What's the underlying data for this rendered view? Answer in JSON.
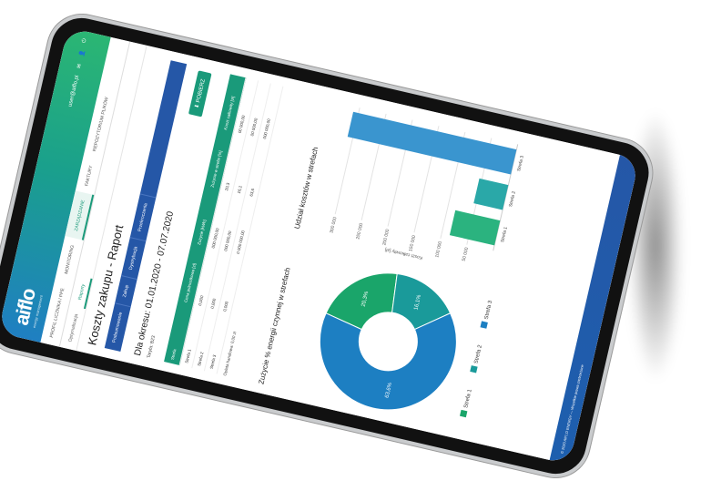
{
  "header": {
    "logo": "aiflo",
    "logo_sub": "energy management",
    "user": "user@aiflo.pl",
    "icons": [
      "mail-icon",
      "user-icon",
      "power-icon"
    ]
  },
  "nav": {
    "items": [
      "PROFIL LICZNIKA / PPE",
      "MONITORING",
      "ZARZĄDZANIE",
      "FAKTURY",
      "REPOZYTORIUM PLIKÓW"
    ],
    "active": "ZARZĄDZANIE"
  },
  "subnav": {
    "items": [
      "Optymalizacja",
      "Raporty"
    ],
    "active": "Raporty"
  },
  "page": {
    "title": "Koszty zakupu - Raport",
    "tabs": [
      "Podsumowanie",
      "Zakup",
      "Dystrybucja",
      "Przekroczenia"
    ],
    "period": "Dla okresu: 01.01.2020 - 07.07.2020",
    "tariff": "Taryfa: B23",
    "download_button": "POBIERZ"
  },
  "table": {
    "headers": [
      "Strefa",
      "Cena jednostkowa [zł]",
      "Zużycie [kWh]",
      "Zużycie w strefie [%]",
      "Koszt całkowity [zł]"
    ],
    "rows": [
      [
        "Strefa 1",
        "0,000",
        "000 000,00",
        "20,3",
        "00 000,00"
      ],
      [
        "Strefa 2",
        "0,000",
        "000 000,00",
        "16,1",
        "00 000,00"
      ],
      [
        "Strefa 3",
        "0,000",
        "0 000 000,00",
        "63,6",
        "000 000,00"
      ]
    ],
    "fee": "Opłata handlowa: 0,00 zł"
  },
  "chart_data": [
    {
      "type": "pie",
      "title": "Zużycie % energii czynnej w strefach",
      "categories": [
        "Strefa 1",
        "Strefa 2",
        "Strefa 3"
      ],
      "values": [
        20.3,
        16.1,
        63.6
      ],
      "labels": [
        "20,3%",
        "16,1%",
        "63,6%"
      ],
      "colors": [
        "#1aa56a",
        "#1a9a9a",
        "#1d7fc2"
      ],
      "legend": "bottom"
    },
    {
      "type": "bar",
      "title": "Udział kosztów w strefach",
      "categories": [
        "Strefa 1",
        "Strefa 2",
        "Strefa 3"
      ],
      "values": [
        85000,
        55000,
        310000
      ],
      "colors": [
        "#2bb37f",
        "#2aa8a8",
        "#3a95cf"
      ],
      "ylabel": "Koszt całkowity [zł]",
      "ticks": [
        "50 000",
        "100 000",
        "150 000",
        "200 000",
        "250 000",
        "300 000"
      ],
      "ylim": [
        0,
        320000
      ],
      "grid": true
    }
  ],
  "footer": {
    "text": "© 2020 AIFLO ENERGY — Wszelkie prawa zastrzeżone"
  }
}
